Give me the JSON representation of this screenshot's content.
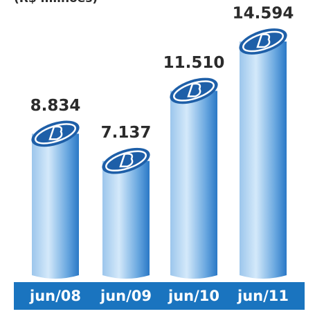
{
  "chart_data": {
    "type": "bar",
    "subtitle": "(R$ milhões)",
    "categories": [
      "jun/08",
      "jun/09",
      "jun/10",
      "jun/11"
    ],
    "values": [
      8834,
      7137,
      11510,
      14594
    ],
    "value_labels": [
      "8.834",
      "7.137",
      "11.510",
      "14.594"
    ],
    "color": "#3a8ad6"
  }
}
